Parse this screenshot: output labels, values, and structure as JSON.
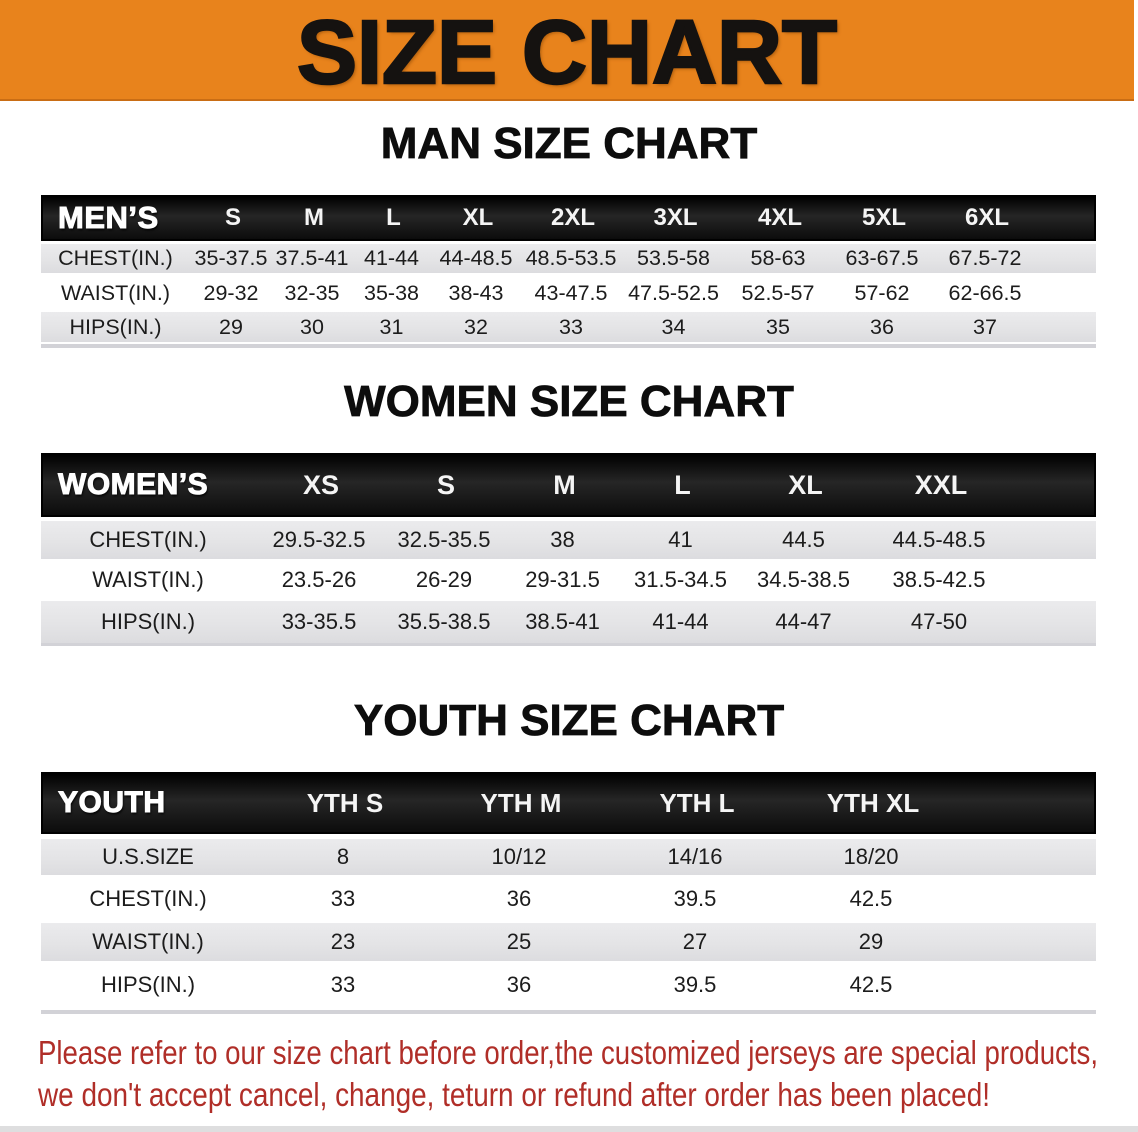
{
  "banner": {
    "title": "SIZE CHART",
    "bg_color": "#E8831C",
    "text_color": "#151210"
  },
  "sections": {
    "men": {
      "title": "MAN SIZE CHART"
    },
    "women": {
      "title": "WOMEN SIZE CHART"
    },
    "youth": {
      "title": "YOUTH SIZE CHART"
    }
  },
  "tables": {
    "men": {
      "header": {
        "label": "MEN’S",
        "sizes": [
          "S",
          "M",
          "L",
          "XL",
          "2XL",
          "3XL",
          "4XL",
          "5XL",
          "6XL"
        ]
      },
      "rows": [
        {
          "label": "CHEST(IN.)",
          "cells": [
            "35-37.5",
            "37.5-41",
            "41-44",
            "44-48.5",
            "48.5-53.5",
            "53.5-58",
            "58-63",
            "63-67.5",
            "67.5-72"
          ]
        },
        {
          "label": "WAIST(IN.)",
          "cells": [
            "29-32",
            "32-35",
            "35-38",
            "38-43",
            "43-47.5",
            "47.5-52.5",
            "52.5-57",
            "57-62",
            "62-66.5"
          ]
        },
        {
          "label": "HIPS(IN.)",
          "cells": [
            "29",
            "30",
            "31",
            "32",
            "33",
            "34",
            "35",
            "36",
            "37"
          ]
        }
      ]
    },
    "women": {
      "header": {
        "label": "WOMEN’S",
        "sizes": [
          "XS",
          "S",
          "M",
          "L",
          "XL",
          "XXL"
        ]
      },
      "rows": [
        {
          "label": "CHEST(IN.)",
          "cells": [
            "29.5-32.5",
            "32.5-35.5",
            "38",
            "41",
            "44.5",
            "44.5-48.5"
          ]
        },
        {
          "label": "WAIST(IN.)",
          "cells": [
            "23.5-26",
            "26-29",
            "29-31.5",
            "31.5-34.5",
            "34.5-38.5",
            "38.5-42.5"
          ]
        },
        {
          "label": "HIPS(IN.)",
          "cells": [
            "33-35.5",
            "35.5-38.5",
            "38.5-41",
            "41-44",
            "44-47",
            "47-50"
          ]
        }
      ]
    },
    "youth": {
      "header": {
        "label": "YOUTH",
        "sizes": [
          "YTH S",
          "YTH M",
          "YTH L",
          "YTH XL"
        ]
      },
      "rows": [
        {
          "label": "U.S.SIZE",
          "cells": [
            "8",
            "10/12",
            "14/16",
            "18/20"
          ]
        },
        {
          "label": "CHEST(IN.)",
          "cells": [
            "33",
            "36",
            "39.5",
            "42.5"
          ]
        },
        {
          "label": "WAIST(IN.)",
          "cells": [
            "23",
            "25",
            "27",
            "29"
          ]
        },
        {
          "label": "HIPS(IN.)",
          "cells": [
            "33",
            "36",
            "39.5",
            "42.5"
          ]
        }
      ]
    }
  },
  "disclaimer": {
    "line1": "Please refer to our size chart before order,the customized jerseys are special products,",
    "line2": "we don't accept cancel, change, teturn or refund after order has been placed!",
    "text_color": "#B02E28"
  },
  "colors": {
    "banner_orange": "#E8831C",
    "table_header_black": "#111111",
    "row_gray": "#E4E4E6",
    "row_white": "#FFFFFF",
    "divider_gray": "#D2D2D7",
    "bottom_strip_gray": "#DEDEDF"
  }
}
